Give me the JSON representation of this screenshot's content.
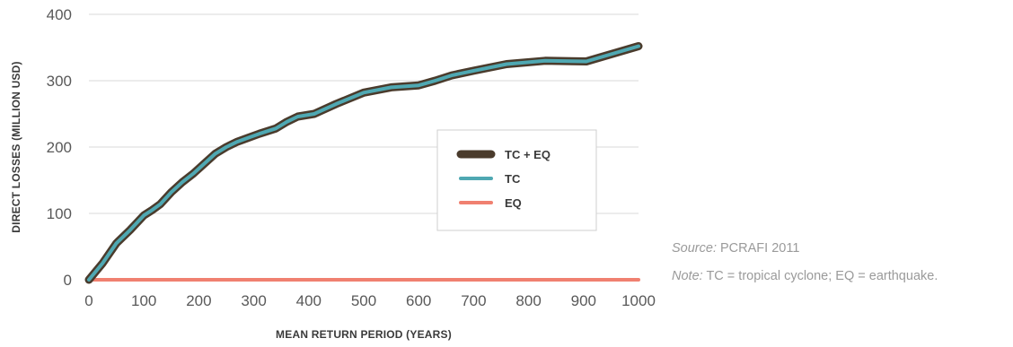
{
  "chart_data": {
    "type": "line",
    "xlabel": "MEAN RETURN PERIOD (YEARS)",
    "ylabel": "DIRECT LOSSES (MILLION USD)",
    "xlim": [
      0,
      1000
    ],
    "ylim": [
      0,
      400
    ],
    "xticks": [
      "0",
      "100",
      "200",
      "300",
      "400",
      "500",
      "600",
      "700",
      "800",
      "900",
      "1000"
    ],
    "yticks": [
      "0",
      "100",
      "200",
      "300",
      "400"
    ],
    "grid": "horizontal",
    "legend_placement": "center-right",
    "series": [
      {
        "name": "TC + EQ",
        "color": "#4a3b2c",
        "points": [
          [
            0,
            0
          ],
          [
            25,
            25
          ],
          [
            50,
            55
          ],
          [
            75,
            75
          ],
          [
            100,
            97
          ],
          [
            115,
            105
          ],
          [
            130,
            114
          ],
          [
            150,
            132
          ],
          [
            170,
            147
          ],
          [
            190,
            160
          ],
          [
            210,
            175
          ],
          [
            230,
            190
          ],
          [
            250,
            200
          ],
          [
            270,
            208
          ],
          [
            290,
            214
          ],
          [
            310,
            220
          ],
          [
            340,
            228
          ],
          [
            360,
            238
          ],
          [
            380,
            246
          ],
          [
            410,
            250
          ],
          [
            450,
            265
          ],
          [
            500,
            282
          ],
          [
            550,
            290
          ],
          [
            600,
            293
          ],
          [
            630,
            300
          ],
          [
            660,
            308
          ],
          [
            700,
            315
          ],
          [
            760,
            325
          ],
          [
            830,
            330
          ],
          [
            905,
            329
          ],
          [
            1000,
            352
          ]
        ]
      },
      {
        "name": "TC",
        "color": "#4fa8b2",
        "points": [
          [
            0,
            0
          ],
          [
            25,
            25
          ],
          [
            50,
            55
          ],
          [
            75,
            75
          ],
          [
            100,
            97
          ],
          [
            115,
            105
          ],
          [
            130,
            114
          ],
          [
            150,
            132
          ],
          [
            170,
            147
          ],
          [
            190,
            160
          ],
          [
            210,
            175
          ],
          [
            230,
            190
          ],
          [
            250,
            200
          ],
          [
            270,
            208
          ],
          [
            290,
            214
          ],
          [
            310,
            220
          ],
          [
            340,
            228
          ],
          [
            360,
            238
          ],
          [
            380,
            246
          ],
          [
            410,
            250
          ],
          [
            450,
            265
          ],
          [
            500,
            282
          ],
          [
            550,
            290
          ],
          [
            600,
            293
          ],
          [
            630,
            300
          ],
          [
            660,
            308
          ],
          [
            700,
            315
          ],
          [
            760,
            325
          ],
          [
            830,
            330
          ],
          [
            905,
            329
          ],
          [
            1000,
            352
          ]
        ]
      },
      {
        "name": "EQ",
        "color": "#f08070",
        "points": [
          [
            0,
            0
          ],
          [
            1000,
            0
          ]
        ]
      }
    ]
  },
  "notes": {
    "source_label": "Source:",
    "source_text": " PCRAFI 2011",
    "note_label": "Note:",
    "note_text": " TC = tropical cyclone; EQ = earthquake."
  }
}
